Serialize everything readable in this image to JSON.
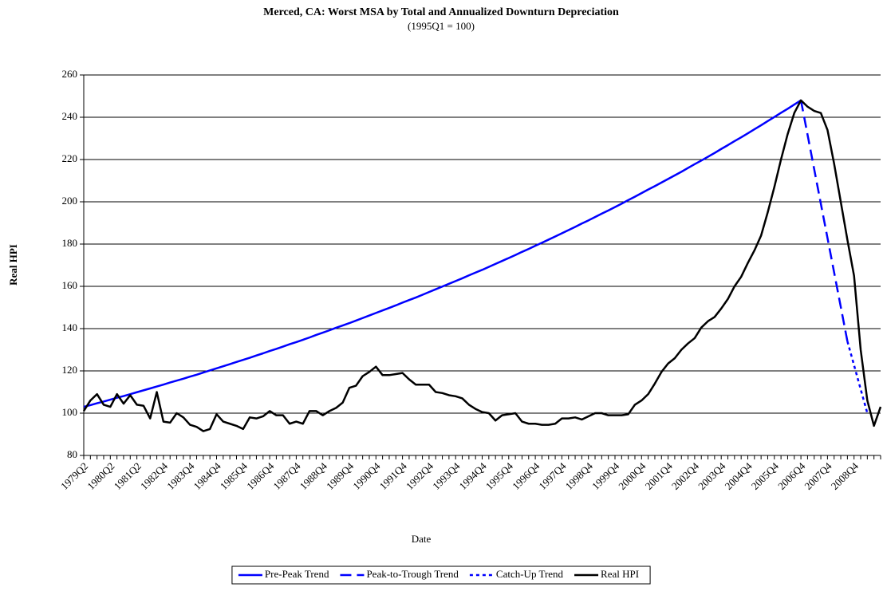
{
  "chart_data": {
    "type": "line",
    "title": "Merced, CA: Worst MSA by Total and Annualized Downturn Depreciation",
    "subtitle": "(1995Q1 = 100)",
    "x_label": "Date",
    "y_label": "Real HPI",
    "ylim": [
      80,
      260
    ],
    "yticks": [
      80,
      100,
      120,
      140,
      160,
      180,
      200,
      220,
      240,
      260
    ],
    "grid": true,
    "legend": "bottom",
    "categories": [
      "1979Q2",
      null,
      null,
      null,
      "1980Q2",
      null,
      null,
      null,
      "1981Q2",
      null,
      null,
      null,
      "1982Q4",
      null,
      null,
      null,
      "1983Q4",
      null,
      null,
      null,
      "1984Q4",
      null,
      null,
      null,
      "1985Q4",
      null,
      null,
      null,
      "1986Q4",
      null,
      null,
      null,
      "1987Q4",
      null,
      null,
      null,
      "1988Q4",
      null,
      null,
      null,
      "1989Q4",
      null,
      null,
      null,
      "1990Q4",
      null,
      null,
      null,
      "1991Q4",
      null,
      null,
      null,
      "1992Q4",
      null,
      null,
      null,
      "1993Q4",
      null,
      null,
      null,
      "1994Q4",
      null,
      null,
      null,
      "1995Q4",
      null,
      null,
      null,
      "1996Q4",
      null,
      null,
      null,
      "1997Q4",
      null,
      null,
      null,
      "1998Q4",
      null,
      null,
      null,
      "1999Q4",
      null,
      null,
      null,
      "2000Q4",
      null,
      null,
      null,
      "2001Q4",
      null,
      null,
      null,
      "2002Q4",
      null,
      null,
      null,
      "2003Q4",
      null,
      null,
      null,
      "2004Q4",
      null,
      null,
      null,
      "2005Q4",
      null,
      null,
      null,
      "2006Q4",
      null,
      null,
      null,
      "2007Q4",
      null,
      null,
      null,
      "2008Q4",
      null,
      null,
      null,
      null
    ],
    "series": [
      {
        "name": "Pre-Peak Trend",
        "color": "#0000ff",
        "dash": "solid",
        "values": [
          103.0,
          103.8,
          104.7,
          105.5,
          106.4,
          107.3,
          108.1,
          109.0,
          109.9,
          110.8,
          111.7,
          112.6,
          113.5,
          114.5,
          115.4,
          116.3,
          117.3,
          118.2,
          119.2,
          120.2,
          121.2,
          122.2,
          123.2,
          124.2,
          125.2,
          126.2,
          127.3,
          128.3,
          129.4,
          130.4,
          131.5,
          132.6,
          133.6,
          134.7,
          135.8,
          137.0,
          138.1,
          139.2,
          140.4,
          141.5,
          142.6,
          143.8,
          145.0,
          146.2,
          147.4,
          148.6,
          149.8,
          151.0,
          152.3,
          153.5,
          154.7,
          156.0,
          157.3,
          158.6,
          159.9,
          161.2,
          162.5,
          163.8,
          165.2,
          166.5,
          167.8,
          169.2,
          170.6,
          172.0,
          173.4,
          174.8,
          176.3,
          177.7,
          179.2,
          180.6,
          182.1,
          183.6,
          185.1,
          186.6,
          188.1,
          189.7,
          191.2,
          192.8,
          194.4,
          195.9,
          197.5,
          199.1,
          200.8,
          202.4,
          204.1,
          205.8,
          207.4,
          209.1,
          210.8,
          212.5,
          214.2,
          216.0,
          217.8,
          219.5,
          221.3,
          223.1,
          225.0,
          226.8,
          228.7,
          230.5,
          232.4,
          234.3,
          236.2,
          238.2,
          240.1,
          242.1,
          244.0,
          246.0,
          248.0,
          null,
          null,
          null,
          null,
          null,
          null,
          null,
          null,
          null,
          null,
          null,
          null
        ]
      },
      {
        "name": "Peak-to-Trough Trend",
        "color": "#0000ff",
        "dash": "dashed",
        "values": [
          null,
          null,
          null,
          null,
          null,
          null,
          null,
          null,
          null,
          null,
          null,
          null,
          null,
          null,
          null,
          null,
          null,
          null,
          null,
          null,
          null,
          null,
          null,
          null,
          null,
          null,
          null,
          null,
          null,
          null,
          null,
          null,
          null,
          null,
          null,
          null,
          null,
          null,
          null,
          null,
          null,
          null,
          null,
          null,
          null,
          null,
          null,
          null,
          null,
          null,
          null,
          null,
          null,
          null,
          null,
          null,
          null,
          null,
          null,
          null,
          null,
          null,
          null,
          null,
          null,
          null,
          null,
          null,
          null,
          null,
          null,
          null,
          null,
          null,
          null,
          null,
          null,
          null,
          null,
          null,
          null,
          null,
          null,
          null,
          null,
          null,
          null,
          null,
          null,
          null,
          null,
          null,
          null,
          null,
          null,
          null,
          null,
          null,
          null,
          null,
          null,
          null,
          null,
          null,
          null,
          null,
          null,
          null,
          248.0,
          231.7,
          215.4,
          199.1,
          182.9,
          166.6,
          150.3,
          134.0,
          null,
          null,
          null,
          null,
          null
        ]
      },
      {
        "name": "Catch-Up Trend",
        "color": "#0000ff",
        "dash": "dotted",
        "values": [
          null,
          null,
          null,
          null,
          null,
          null,
          null,
          null,
          null,
          null,
          null,
          null,
          null,
          null,
          null,
          null,
          null,
          null,
          null,
          null,
          null,
          null,
          null,
          null,
          null,
          null,
          null,
          null,
          null,
          null,
          null,
          null,
          null,
          null,
          null,
          null,
          null,
          null,
          null,
          null,
          null,
          null,
          null,
          null,
          null,
          null,
          null,
          null,
          null,
          null,
          null,
          null,
          null,
          null,
          null,
          null,
          null,
          null,
          null,
          null,
          null,
          null,
          null,
          null,
          null,
          null,
          null,
          null,
          null,
          null,
          null,
          null,
          null,
          null,
          null,
          null,
          null,
          null,
          null,
          null,
          null,
          null,
          null,
          null,
          null,
          null,
          null,
          null,
          null,
          null,
          null,
          null,
          null,
          null,
          null,
          null,
          null,
          null,
          null,
          null,
          null,
          null,
          null,
          null,
          null,
          null,
          null,
          null,
          null,
          null,
          null,
          null,
          null,
          null,
          null,
          134.0,
          122.7,
          111.3,
          100.0,
          null,
          null
        ]
      },
      {
        "name": "Real HPI",
        "color": "#000000",
        "dash": "solid",
        "values": [
          101,
          106,
          109,
          104,
          103,
          109,
          104.5,
          108.5,
          104,
          103.5,
          97.5,
          110,
          96,
          95.5,
          100,
          98,
          94.5,
          93.5,
          91.5,
          92.5,
          99.5,
          96,
          95,
          94,
          92.5,
          98,
          97.5,
          98.5,
          101,
          99,
          99,
          95,
          96,
          95,
          101,
          101,
          99,
          101,
          102.5,
          105,
          112,
          113,
          117.5,
          119.5,
          122,
          118,
          118,
          118.5,
          119,
          116,
          113.5,
          113.5,
          113.5,
          110,
          109.5,
          108.5,
          108,
          107,
          104,
          102,
          100.5,
          100,
          96.5,
          99,
          99.5,
          100,
          96,
          95,
          95,
          94.5,
          94.5,
          95,
          97.5,
          97.5,
          98,
          97,
          98.5,
          100,
          100,
          99,
          99,
          99,
          99.5,
          104,
          106,
          109,
          114,
          119.5,
          123.5,
          126,
          130,
          133,
          135.5,
          140.5,
          143.5,
          145.5,
          149.5,
          154,
          160,
          164.5,
          171,
          177,
          184,
          195,
          207,
          220,
          232,
          242,
          248,
          245,
          243,
          242,
          234,
          218,
          200,
          182,
          165,
          130,
          106,
          94,
          103
        ]
      }
    ]
  }
}
